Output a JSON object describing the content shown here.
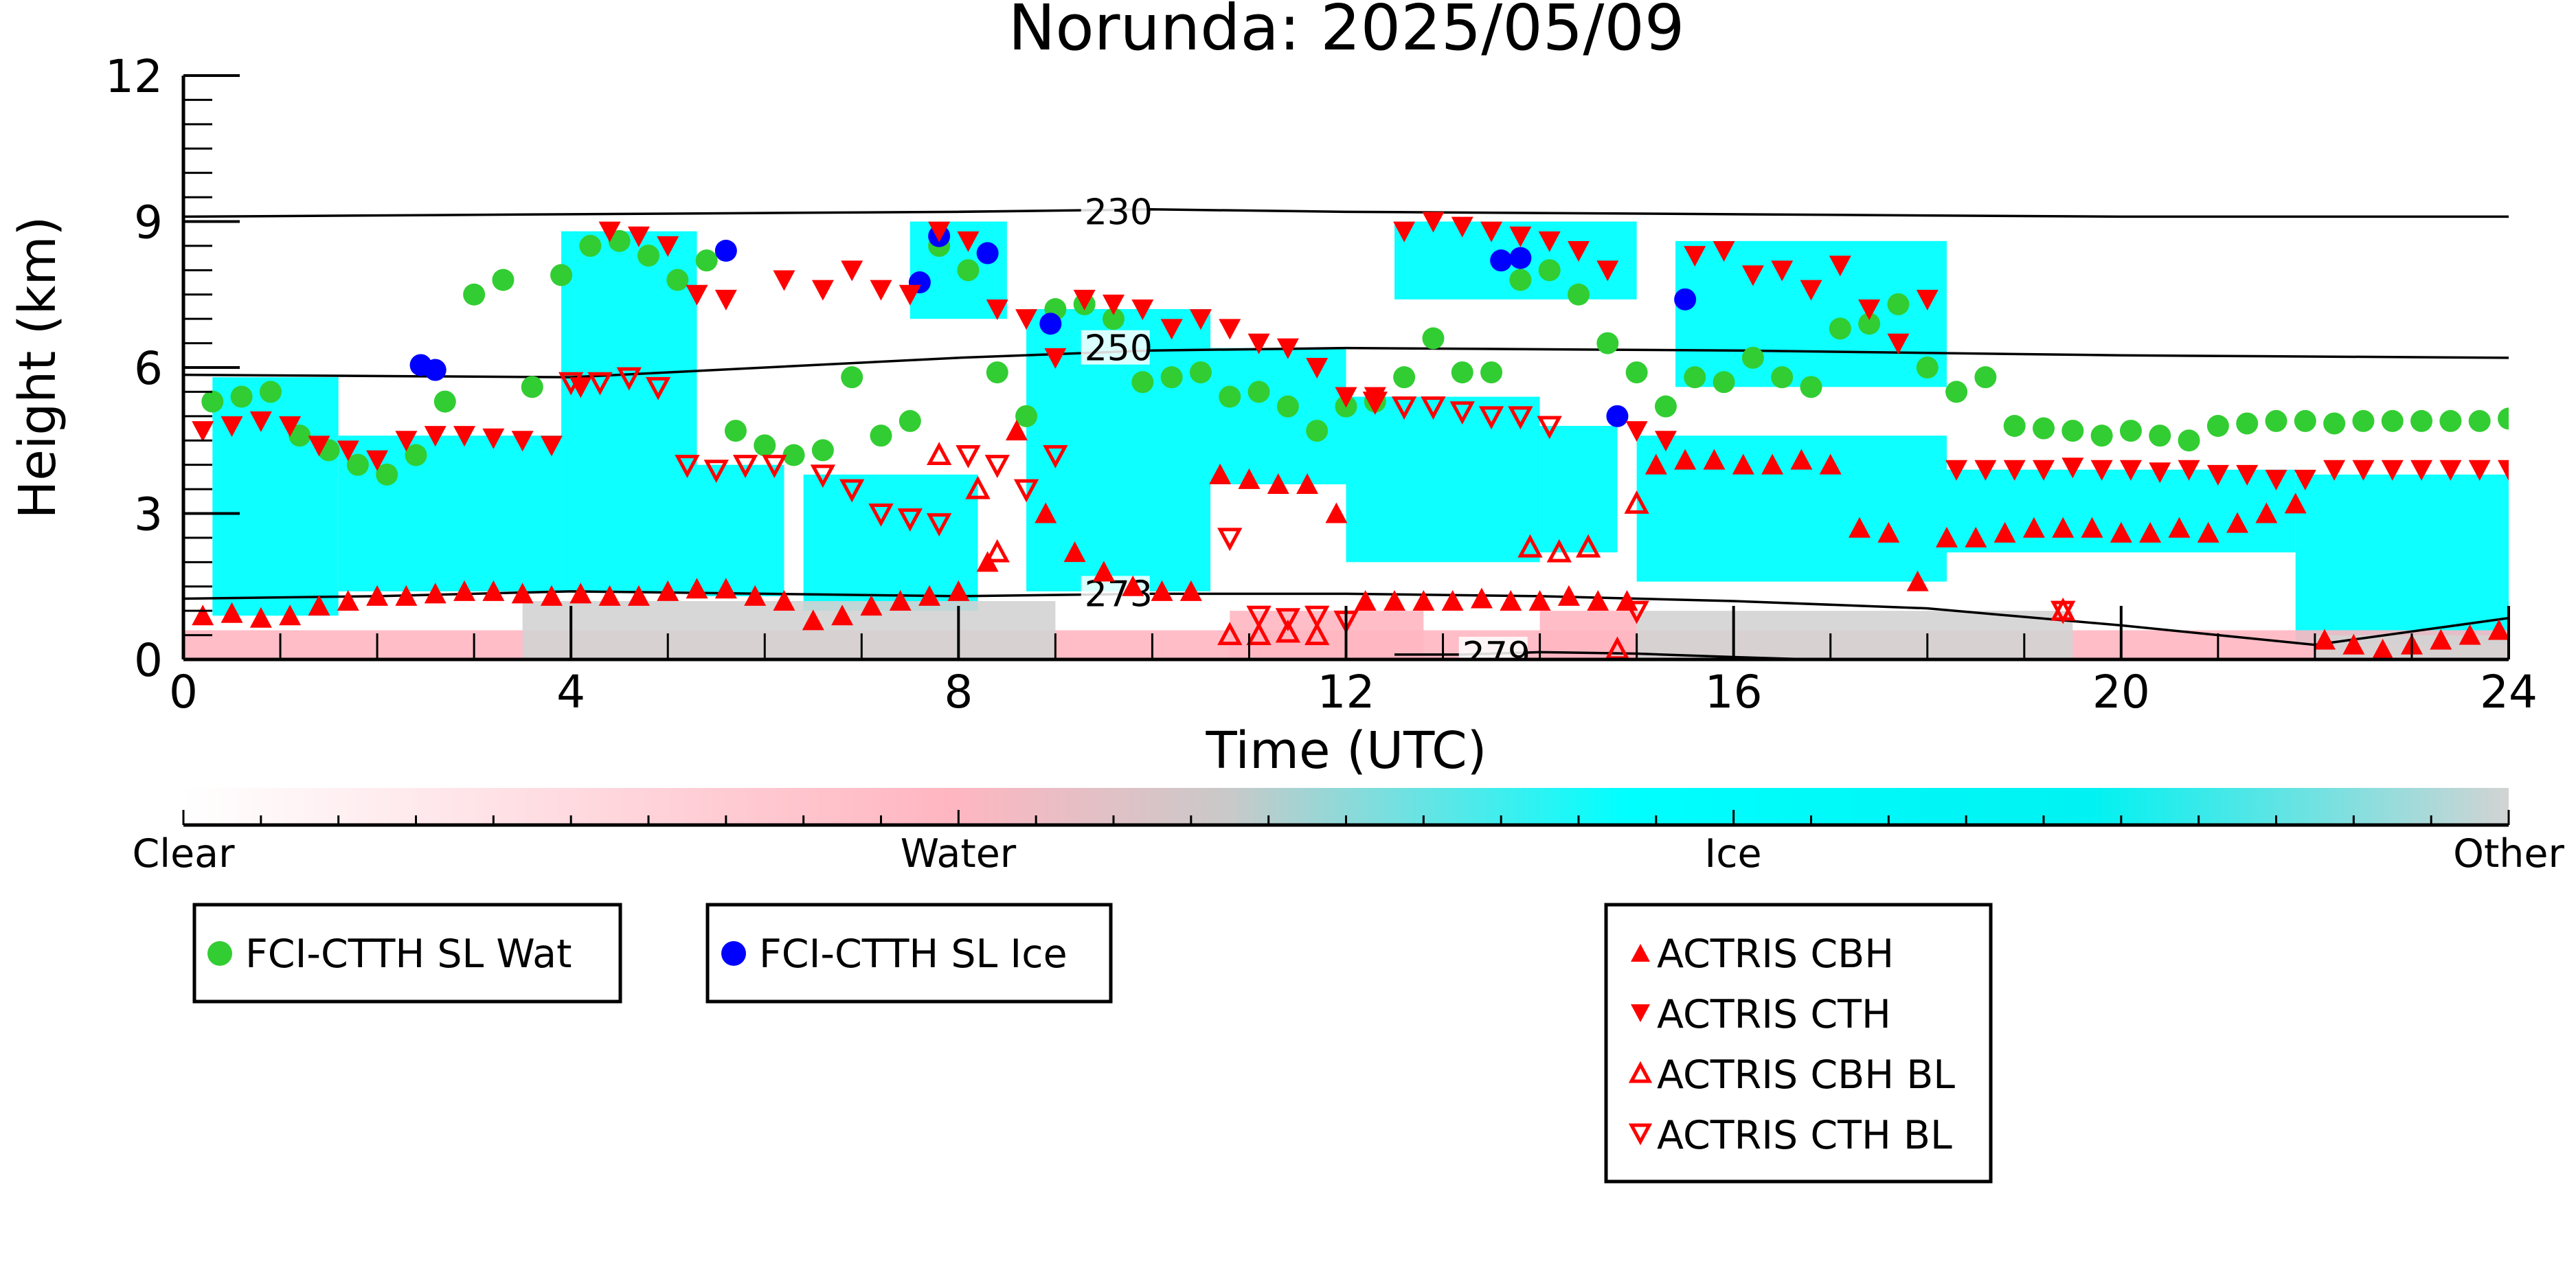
{
  "chart_data": {
    "type": "scatter",
    "title": "Norunda: 2025/05/09",
    "xlabel": "Time (UTC)",
    "ylabel": "Height (km)",
    "xlim": [
      0,
      24
    ],
    "ylim": [
      0,
      12
    ],
    "x_ticks": [
      0,
      4,
      8,
      12,
      16,
      20,
      24
    ],
    "y_ticks": [
      0,
      3,
      6,
      9,
      12
    ],
    "grid": false,
    "colorbar": {
      "labels": [
        "Clear",
        "Water",
        "Ice",
        "Other"
      ],
      "colors": {
        "clear": "#ffffff",
        "water": "#ffb6c1",
        "ice": "#00ffff",
        "other": "#d3d3d3"
      }
    },
    "contours": [
      {
        "label": "230",
        "x": [
          0,
          4,
          8,
          10,
          12,
          16,
          20,
          24
        ],
        "y": [
          9.1,
          9.15,
          9.2,
          9.25,
          9.2,
          9.15,
          9.1,
          9.1
        ]
      },
      {
        "label": "250",
        "x": [
          0,
          4,
          8,
          10,
          12,
          16,
          20,
          24
        ],
        "y": [
          5.85,
          5.8,
          6.2,
          6.35,
          6.4,
          6.35,
          6.25,
          6.2
        ]
      },
      {
        "label": "273",
        "x": [
          0,
          2,
          4,
          6,
          8,
          10,
          12,
          14,
          16,
          18,
          20,
          22,
          24
        ],
        "y": [
          1.25,
          1.3,
          1.4,
          1.35,
          1.3,
          1.35,
          1.35,
          1.3,
          1.2,
          1.05,
          0.7,
          0.3,
          0.85
        ]
      },
      {
        "label": "279",
        "x": [
          12.5,
          13.2,
          14,
          15,
          16,
          16.8
        ],
        "y": [
          0.1,
          0.1,
          0.15,
          0.12,
          0.05,
          0.0
        ]
      }
    ],
    "cloud_regions": [
      {
        "type": "ice",
        "x0": 0.3,
        "x1": 1.6,
        "y0": 0.9,
        "y1": 5.8
      },
      {
        "type": "ice",
        "x0": 1.6,
        "x1": 3.9,
        "y0": 1.4,
        "y1": 4.6
      },
      {
        "type": "ice",
        "x0": 3.9,
        "x1": 5.3,
        "y0": 1.4,
        "y1": 8.8
      },
      {
        "type": "ice",
        "x0": 5.3,
        "x1": 6.2,
        "y0": 1.3,
        "y1": 4.0
      },
      {
        "type": "ice",
        "x0": 6.4,
        "x1": 8.2,
        "y0": 1.0,
        "y1": 3.8
      },
      {
        "type": "ice",
        "x0": 7.5,
        "x1": 8.5,
        "y0": 7.0,
        "y1": 9.0
      },
      {
        "type": "ice",
        "x0": 8.7,
        "x1": 10.6,
        "y0": 1.4,
        "y1": 7.2
      },
      {
        "type": "ice",
        "x0": 10.6,
        "x1": 12.0,
        "y0": 3.6,
        "y1": 6.4
      },
      {
        "type": "ice",
        "x0": 12.0,
        "x1": 14.0,
        "y0": 2.0,
        "y1": 5.4
      },
      {
        "type": "ice",
        "x0": 12.5,
        "x1": 15.0,
        "y0": 7.4,
        "y1": 9.0
      },
      {
        "type": "ice",
        "x0": 14.0,
        "x1": 14.8,
        "y0": 2.2,
        "y1": 4.8
      },
      {
        "type": "ice",
        "x0": 15.0,
        "x1": 18.2,
        "y0": 1.6,
        "y1": 4.6
      },
      {
        "type": "ice",
        "x0": 15.4,
        "x1": 18.2,
        "y0": 5.6,
        "y1": 8.6
      },
      {
        "type": "ice",
        "x0": 18.2,
        "x1": 21.8,
        "y0": 2.2,
        "y1": 3.9
      },
      {
        "type": "ice",
        "x0": 21.8,
        "x1": 24.0,
        "y0": 0.3,
        "y1": 3.8
      },
      {
        "type": "water",
        "x0": 0.0,
        "x1": 24.0,
        "y0": 0.0,
        "y1": 0.6
      },
      {
        "type": "water",
        "x0": 10.8,
        "x1": 12.8,
        "y0": 0.0,
        "y1": 1.0
      },
      {
        "type": "water",
        "x0": 14.0,
        "x1": 15.0,
        "y0": 0.0,
        "y1": 1.0
      },
      {
        "type": "other",
        "x0": 3.5,
        "x1": 9.0,
        "y0": 0.0,
        "y1": 1.2
      },
      {
        "type": "other",
        "x0": 15.0,
        "x1": 19.5,
        "y0": 0.0,
        "y1": 1.0
      },
      {
        "type": "other",
        "x0": 22.0,
        "x1": 24.0,
        "y0": 0.0,
        "y1": 0.5
      }
    ],
    "series": [
      {
        "name": "FCI-CTTH SL Wat",
        "marker": "circle",
        "color": "#32cd32",
        "x": [
          0.3,
          0.6,
          0.9,
          1.2,
          1.5,
          1.8,
          2.1,
          2.4,
          2.7,
          3.0,
          3.3,
          3.6,
          3.9,
          4.2,
          4.5,
          4.8,
          5.1,
          5.4,
          5.7,
          6.0,
          6.3,
          6.6,
          6.9,
          7.2,
          7.5,
          7.8,
          8.1,
          8.4,
          8.7,
          9.0,
          9.3,
          9.6,
          9.9,
          10.2,
          10.5,
          10.8,
          11.1,
          11.4,
          11.7,
          12.0,
          12.3,
          12.6,
          12.9,
          13.2,
          13.5,
          13.8,
          14.1,
          14.4,
          14.7,
          15.0,
          15.3,
          15.6,
          15.9,
          16.2,
          16.5,
          16.8,
          17.1,
          17.4,
          17.7,
          18.0,
          18.3,
          18.6,
          18.9,
          19.2,
          19.5,
          19.8,
          20.1,
          20.4,
          20.7,
          21.0,
          21.3,
          21.6,
          21.9,
          22.2,
          22.5,
          22.8,
          23.1,
          23.4,
          23.7,
          24.0
        ],
        "y": [
          5.3,
          5.4,
          5.5,
          4.6,
          4.3,
          4.0,
          3.8,
          4.2,
          5.3,
          7.5,
          7.8,
          5.6,
          7.9,
          8.5,
          8.6,
          8.3,
          7.8,
          8.2,
          4.7,
          4.4,
          4.2,
          4.3,
          5.8,
          4.6,
          4.9,
          8.5,
          8.0,
          5.9,
          5.0,
          7.2,
          7.3,
          7.0,
          5.7,
          5.8,
          5.9,
          5.4,
          5.5,
          5.2,
          4.7,
          5.2,
          5.3,
          5.8,
          6.6,
          5.9,
          5.9,
          7.8,
          8.0,
          7.5,
          6.5,
          5.9,
          5.2,
          5.8,
          5.7,
          6.2,
          5.8,
          5.6,
          6.8,
          6.9,
          7.3,
          6.0,
          5.5,
          5.8,
          4.8,
          4.75,
          4.7,
          4.6,
          4.7,
          4.6,
          4.5,
          4.8,
          4.85,
          4.9,
          4.9,
          4.85,
          4.9,
          4.9,
          4.9,
          4.9,
          4.9,
          4.95
        ]
      },
      {
        "name": "FCI-CTTH SL Ice",
        "marker": "circle",
        "color": "#0000ff",
        "x": [
          2.45,
          2.6,
          5.6,
          7.6,
          7.8,
          8.3,
          8.95,
          13.6,
          13.8,
          14.8,
          15.5
        ],
        "y": [
          6.05,
          5.95,
          8.4,
          7.75,
          8.7,
          8.35,
          6.9,
          8.2,
          8.25,
          5.0,
          7.4
        ]
      },
      {
        "name": "ACTRIS CBH",
        "marker": "triangle-up",
        "color": "#ff0000",
        "x": [
          0.2,
          0.5,
          0.8,
          1.1,
          1.4,
          1.7,
          2.0,
          2.3,
          2.6,
          2.9,
          3.2,
          3.5,
          3.8,
          4.1,
          4.4,
          4.7,
          5.0,
          5.3,
          5.6,
          5.9,
          6.2,
          6.5,
          6.8,
          7.1,
          7.4,
          7.7,
          8.0,
          8.3,
          8.6,
          8.9,
          9.2,
          9.5,
          9.8,
          10.1,
          10.4,
          10.7,
          11.0,
          11.3,
          11.6,
          11.9,
          12.2,
          12.5,
          12.8,
          13.1,
          13.4,
          13.7,
          14.0,
          14.3,
          14.6,
          14.9,
          15.2,
          15.5,
          15.8,
          16.1,
          16.4,
          16.7,
          17.0,
          17.3,
          17.6,
          17.9,
          18.2,
          18.5,
          18.8,
          19.1,
          19.4,
          19.7,
          20.0,
          20.3,
          20.6,
          20.9,
          21.2,
          21.5,
          21.8,
          22.1,
          22.4,
          22.7,
          23.0,
          23.3,
          23.6,
          23.9
        ],
        "y": [
          0.9,
          0.95,
          0.85,
          0.9,
          1.1,
          1.2,
          1.3,
          1.3,
          1.35,
          1.4,
          1.4,
          1.35,
          1.3,
          1.35,
          1.3,
          1.3,
          1.4,
          1.45,
          1.45,
          1.3,
          1.2,
          0.8,
          0.9,
          1.1,
          1.2,
          1.3,
          1.4,
          2.0,
          4.7,
          3.0,
          2.2,
          1.8,
          1.5,
          1.4,
          1.4,
          3.8,
          3.7,
          3.6,
          3.6,
          3.0,
          1.2,
          1.2,
          1.2,
          1.2,
          1.25,
          1.2,
          1.2,
          1.3,
          1.2,
          1.2,
          4.0,
          4.1,
          4.1,
          4.0,
          4.0,
          4.1,
          4.0,
          2.7,
          2.6,
          1.6,
          2.5,
          2.5,
          2.6,
          2.7,
          2.7,
          2.7,
          2.6,
          2.6,
          2.7,
          2.6,
          2.8,
          3.0,
          3.2,
          0.4,
          0.3,
          0.2,
          0.3,
          0.4,
          0.5,
          0.6
        ]
      },
      {
        "name": "ACTRIS CTH",
        "marker": "triangle-down",
        "color": "#ff0000",
        "x": [
          0.2,
          0.5,
          0.8,
          1.1,
          1.4,
          1.7,
          2.0,
          2.3,
          2.6,
          2.9,
          3.2,
          3.5,
          3.8,
          4.1,
          4.4,
          4.7,
          5.0,
          5.3,
          5.6,
          6.2,
          6.6,
          6.9,
          7.2,
          7.5,
          7.8,
          8.1,
          8.4,
          8.7,
          9.0,
          9.3,
          9.6,
          9.9,
          10.2,
          10.5,
          10.8,
          11.1,
          11.4,
          11.7,
          12.0,
          12.3,
          12.6,
          12.9,
          13.2,
          13.5,
          13.8,
          14.1,
          14.4,
          14.7,
          15.0,
          15.3,
          15.6,
          15.9,
          16.2,
          16.5,
          16.8,
          17.1,
          17.4,
          17.7,
          18.0,
          18.3,
          18.6,
          18.9,
          19.2,
          19.5,
          19.8,
          20.1,
          20.4,
          20.7,
          21.0,
          21.3,
          21.6,
          21.9,
          22.2,
          22.5,
          22.8,
          23.1,
          23.4,
          23.7,
          24.0
        ],
        "y": [
          4.7,
          4.8,
          4.9,
          4.8,
          4.4,
          4.3,
          4.1,
          4.5,
          4.6,
          4.6,
          4.55,
          4.5,
          4.4,
          5.6,
          8.8,
          8.7,
          8.5,
          7.5,
          7.4,
          7.8,
          7.6,
          8.0,
          7.6,
          7.5,
          8.8,
          8.6,
          7.2,
          7.0,
          6.2,
          7.4,
          7.3,
          7.2,
          6.8,
          7.0,
          6.8,
          6.5,
          6.4,
          6.0,
          5.4,
          5.4,
          8.8,
          9.0,
          8.9,
          8.8,
          8.7,
          8.6,
          8.4,
          8.0,
          4.7,
          4.5,
          8.3,
          8.4,
          7.9,
          8.0,
          7.6,
          8.1,
          7.2,
          6.5,
          7.4,
          3.9,
          3.9,
          3.9,
          3.9,
          3.95,
          3.9,
          3.9,
          3.85,
          3.9,
          3.8,
          3.8,
          3.7,
          3.7,
          3.9,
          3.9,
          3.9,
          3.9,
          3.9,
          3.9,
          3.9
        ]
      },
      {
        "name": "ACTRIS CBH BL",
        "marker": "triangle-up-open",
        "color": "#ff0000",
        "x": [
          7.8,
          8.2,
          8.4,
          10.8,
          11.1,
          11.4,
          11.7,
          13.9,
          14.2,
          14.5,
          14.8,
          15.0,
          19.4
        ],
        "y": [
          4.2,
          3.5,
          2.2,
          0.5,
          0.5,
          0.55,
          0.5,
          2.3,
          2.2,
          2.3,
          0.2,
          3.2,
          1.0
        ]
      },
      {
        "name": "ACTRIS CTH BL",
        "marker": "triangle-down-open",
        "color": "#ff0000",
        "x": [
          4.0,
          4.3,
          4.6,
          4.9,
          5.2,
          5.5,
          5.8,
          6.1,
          6.6,
          6.9,
          7.2,
          7.5,
          7.8,
          8.1,
          8.4,
          8.7,
          9.0,
          10.8,
          11.1,
          11.4,
          11.7,
          12.0,
          12.3,
          12.6,
          12.9,
          13.2,
          13.5,
          13.8,
          14.1,
          15.0,
          19.4
        ],
        "y": [
          5.7,
          5.7,
          5.8,
          5.6,
          4.0,
          3.9,
          4.0,
          4.0,
          3.8,
          3.5,
          3.0,
          2.9,
          2.8,
          4.2,
          4.0,
          3.5,
          4.2,
          2.5,
          0.9,
          0.85,
          0.9,
          0.8,
          5.3,
          5.2,
          5.2,
          5.1,
          5.0,
          5.0,
          4.8,
          1.0,
          1.0
        ]
      }
    ]
  },
  "legends": [
    {
      "items": [
        {
          "label": "FCI-CTTH SL Wat"
        }
      ]
    },
    {
      "items": [
        {
          "label": "FCI-CTTH SL Ice"
        }
      ]
    },
    {
      "items": [
        {
          "label": "ACTRIS CBH"
        },
        {
          "label": "ACTRIS CTH"
        },
        {
          "label": "ACTRIS CBH BL"
        },
        {
          "label": "ACTRIS CTH BL"
        }
      ]
    }
  ]
}
